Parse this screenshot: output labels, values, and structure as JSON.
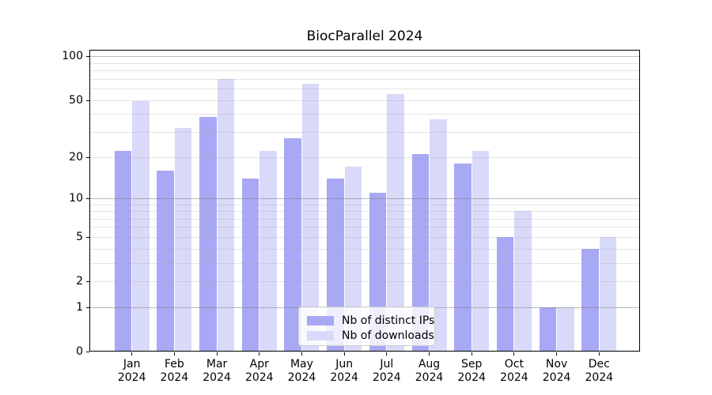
{
  "title": "BiocParallel 2024",
  "chart_data": {
    "type": "bar",
    "title": "BiocParallel 2024",
    "categories": [
      "Jan 2024",
      "Feb 2024",
      "Mar 2024",
      "Apr 2024",
      "May 2024",
      "Jun 2024",
      "Jul 2024",
      "Aug 2024",
      "Sep 2024",
      "Oct 2024",
      "Nov 2024",
      "Dec 2024"
    ],
    "month_labels": [
      "Jan",
      "Feb",
      "Mar",
      "Apr",
      "May",
      "Jun",
      "Jul",
      "Aug",
      "Sep",
      "Oct",
      "Nov",
      "Dec"
    ],
    "year_label": "2024",
    "series": [
      {
        "name": "Nb of distinct IPs",
        "color": "#a8a8f5",
        "values": [
          22,
          16,
          38,
          14,
          27,
          14,
          11,
          21,
          18,
          5,
          1,
          4
        ]
      },
      {
        "name": "Nb of downloads",
        "color": "#d9d9fa",
        "values": [
          49,
          32,
          70,
          22,
          65,
          17,
          55,
          37,
          22,
          8,
          1,
          5
        ]
      }
    ],
    "y_scale": "log1p",
    "ylim": [
      0,
      111
    ],
    "y_ticks": [
      0,
      1,
      2,
      5,
      10,
      20,
      50,
      100
    ],
    "y_major_gridlines": [
      1,
      10,
      100
    ],
    "y_minor_gridlines": [
      2,
      3,
      4,
      5,
      6,
      7,
      8,
      9,
      20,
      30,
      40,
      50,
      60,
      70,
      80,
      90
    ],
    "xlabel": "",
    "ylabel": "",
    "grid": true,
    "legend_position": "lower center"
  },
  "legend": {
    "items": [
      {
        "label": "Nb of distinct IPs",
        "color": "#a8a8f5"
      },
      {
        "label": "Nb of downloads",
        "color": "#d9d9fa"
      }
    ]
  },
  "colors": {
    "bar_distinct_ips": "#a8a8f5",
    "bar_downloads": "#d9d9fa",
    "major_grid": "#b3b3b3",
    "minor_grid": "#e6e6e6",
    "spine": "#000000",
    "background": "#ffffff",
    "text": "#000000"
  }
}
